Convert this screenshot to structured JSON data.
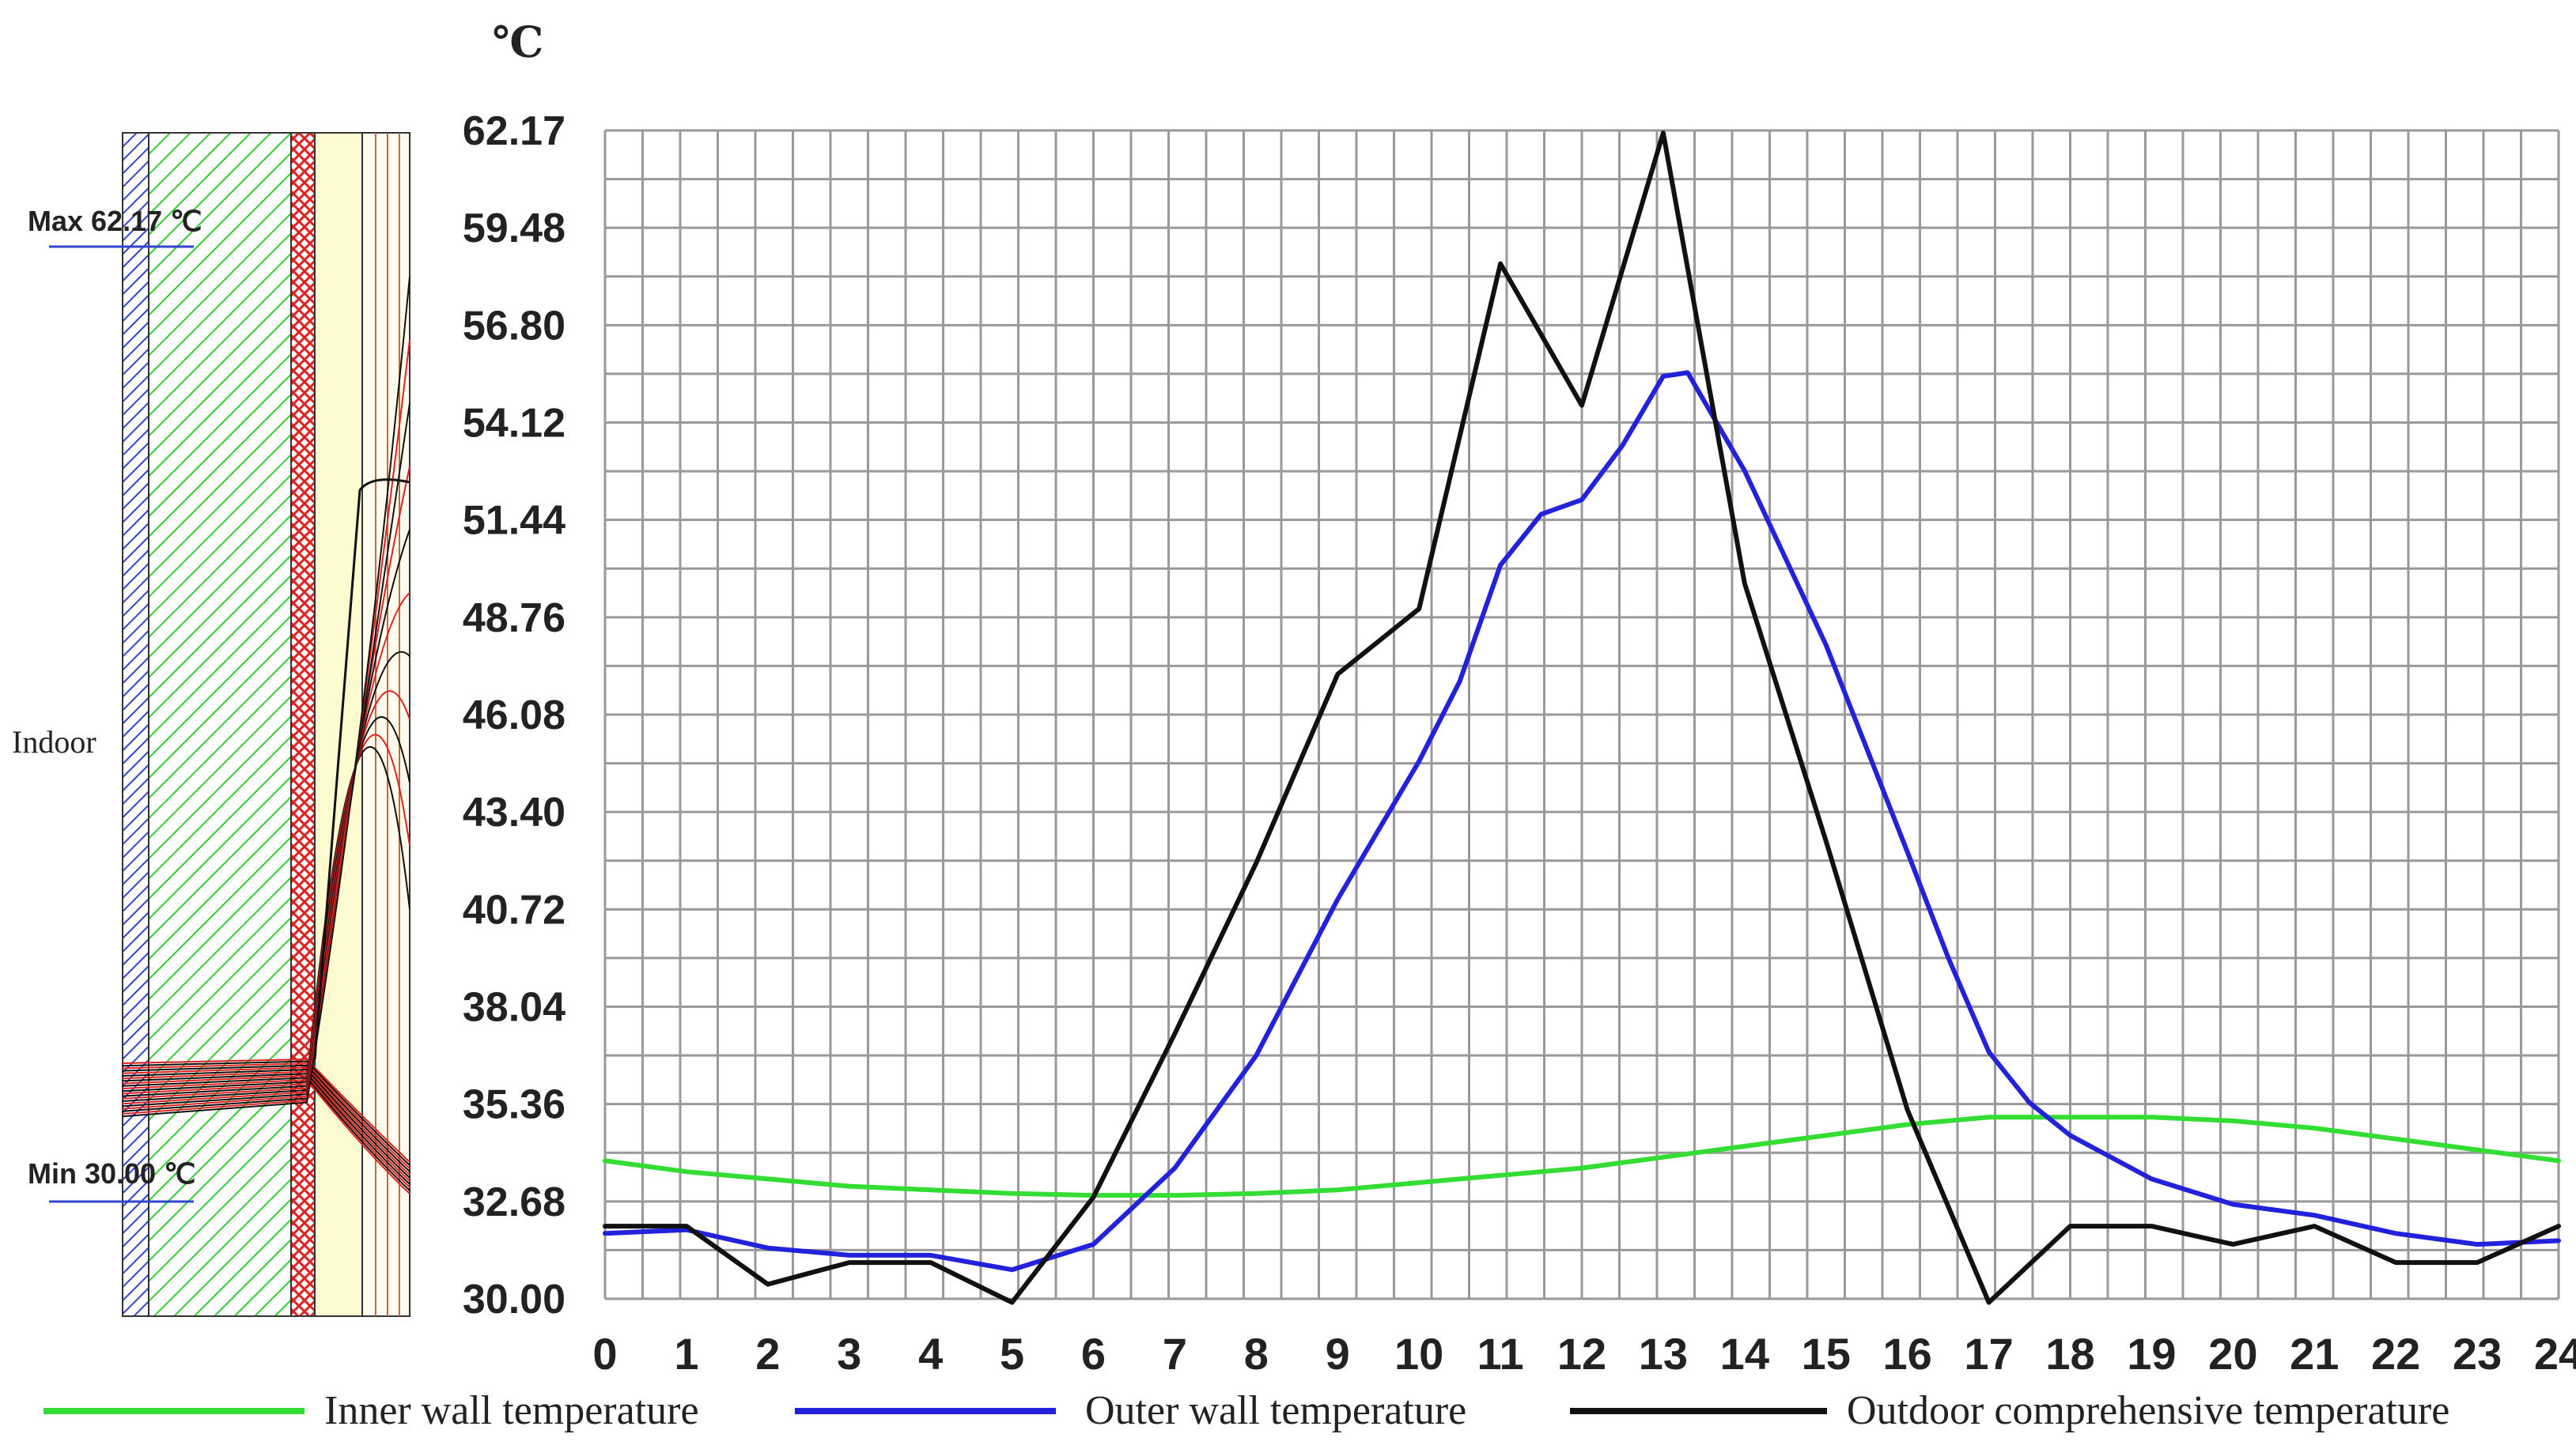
{
  "diagram": {
    "max_label": "Max 62.17 ℃",
    "min_label": "Min 30.00 ℃",
    "indoor_label": "Indoor"
  },
  "chart_data": {
    "type": "line",
    "unit_label": "℃",
    "ylim": [
      30.0,
      62.17
    ],
    "y_ticks": [
      "30.00",
      "32.68",
      "35.36",
      "38.04",
      "40.72",
      "43.40",
      "46.08",
      "48.76",
      "51.44",
      "54.12",
      "56.80",
      "59.48",
      "62.17"
    ],
    "x_ticks": [
      "0",
      "1",
      "2",
      "3",
      "4",
      "5",
      "6",
      "7",
      "8",
      "9",
      "10",
      "11",
      "12",
      "13",
      "14",
      "15",
      "16",
      "17",
      "18",
      "19",
      "20",
      "21",
      "22",
      "23",
      "24"
    ],
    "xlim": [
      0,
      24
    ],
    "grid": true,
    "legend_position": "bottom",
    "colors": {
      "inner": "#33dd33",
      "outer": "#2222dd",
      "outdoor": "#111111"
    },
    "series": [
      {
        "name": "Inner wall temperature",
        "key": "inner",
        "x": [
          0,
          1,
          2,
          3,
          4,
          5,
          6,
          7,
          8,
          9,
          10,
          11,
          12,
          13,
          14,
          15,
          16,
          17,
          18,
          19,
          20,
          21,
          22,
          23,
          24
        ],
        "values": [
          33.8,
          33.5,
          33.3,
          33.1,
          33.0,
          32.9,
          32.85,
          32.85,
          32.9,
          33.0,
          33.2,
          33.4,
          33.6,
          33.9,
          34.2,
          34.5,
          34.8,
          35.0,
          35.0,
          35.0,
          34.9,
          34.7,
          34.4,
          34.1,
          33.8
        ]
      },
      {
        "name": "Outer wall temperature",
        "key": "outer",
        "x": [
          0,
          1,
          2,
          3,
          4,
          5,
          6,
          7,
          8,
          9,
          10,
          10.5,
          11,
          11.5,
          12,
          12.5,
          13,
          13.3,
          14,
          15,
          16,
          16.5,
          17,
          17.5,
          18,
          19,
          20,
          21,
          22,
          23,
          24
        ],
        "values": [
          31.8,
          31.9,
          31.4,
          31.2,
          31.2,
          30.8,
          31.5,
          33.6,
          36.7,
          41.0,
          44.8,
          47.0,
          50.2,
          51.6,
          52.0,
          53.5,
          55.4,
          55.5,
          52.8,
          48.0,
          42.3,
          39.4,
          36.8,
          35.4,
          34.5,
          33.3,
          32.6,
          32.3,
          31.8,
          31.5,
          31.6
        ]
      },
      {
        "name": "Outdoor comprehensive temperature",
        "key": "outdoor",
        "x": [
          0,
          1,
          2,
          3,
          4,
          5,
          6,
          7,
          8,
          9,
          10,
          11,
          12,
          13,
          14,
          15,
          16,
          17,
          18,
          19,
          20,
          21,
          22,
          23,
          24
        ],
        "values": [
          32.0,
          32.0,
          30.4,
          31.0,
          31.0,
          29.9,
          32.8,
          37.3,
          42.0,
          47.2,
          49.0,
          58.5,
          54.6,
          62.1,
          49.7,
          42.6,
          35.2,
          29.9,
          32.0,
          32.0,
          31.5,
          32.0,
          31.0,
          31.0,
          32.0
        ]
      }
    ]
  }
}
